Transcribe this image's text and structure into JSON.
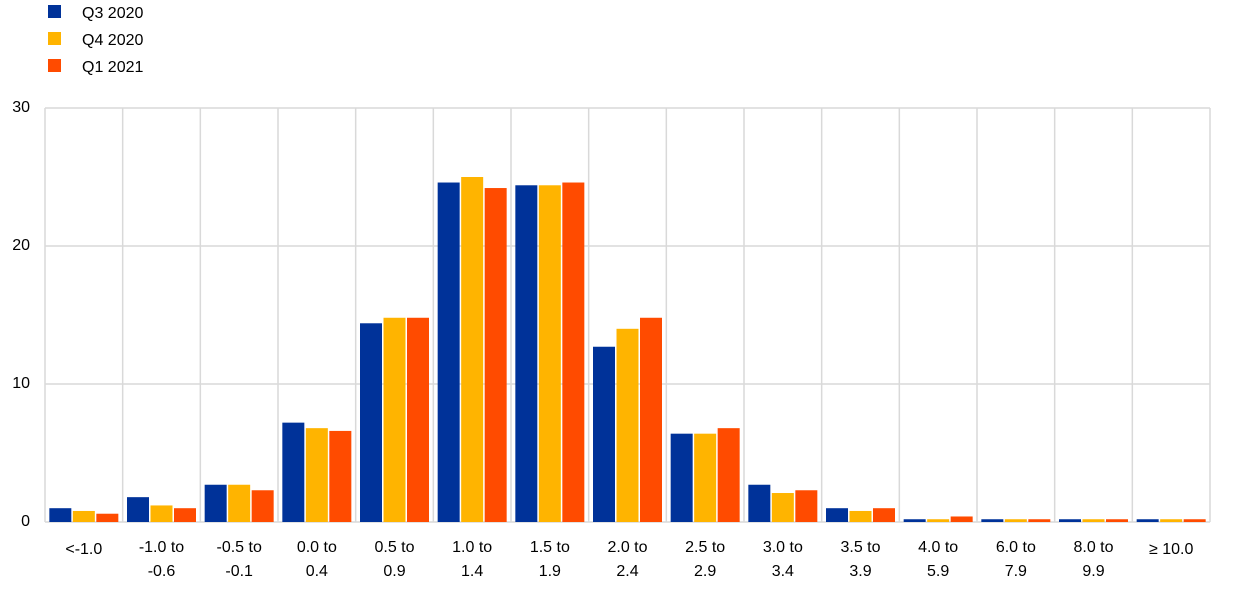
{
  "chart_data": {
    "type": "bar",
    "categories": [
      [
        "<-1.0"
      ],
      [
        "-1.0 to",
        "-0.6"
      ],
      [
        "-0.5 to",
        "-0.1"
      ],
      [
        "0.0 to",
        "0.4"
      ],
      [
        "0.5 to",
        "0.9"
      ],
      [
        "1.0  to",
        "1.4"
      ],
      [
        "1.5  to",
        "1.9"
      ],
      [
        "2.0  to",
        "2.4"
      ],
      [
        "2.5  to",
        "2.9"
      ],
      [
        "3.0  to",
        "3.4"
      ],
      [
        "3.5  to",
        "3.9"
      ],
      [
        "4.0 to",
        "5.9"
      ],
      [
        "6.0 to",
        "7.9"
      ],
      [
        "8.0 to",
        "9.9"
      ],
      [
        "≥ 10.0"
      ]
    ],
    "series": [
      {
        "name": "Q3 2020",
        "color": "#003299",
        "values": [
          1.0,
          1.8,
          2.7,
          7.2,
          14.4,
          24.6,
          24.4,
          12.7,
          6.4,
          2.7,
          1.0,
          0.2,
          0.2,
          0.2,
          0.2
        ]
      },
      {
        "name": "Q4 2020",
        "color": "#ffb400",
        "values": [
          0.8,
          1.2,
          2.7,
          6.8,
          14.8,
          25.0,
          24.4,
          14.0,
          6.4,
          2.1,
          0.8,
          0.2,
          0.2,
          0.2,
          0.2
        ]
      },
      {
        "name": "Q1 2021",
        "color": "#ff4b00",
        "values": [
          0.6,
          1.0,
          2.3,
          6.6,
          14.8,
          24.2,
          24.6,
          14.8,
          6.8,
          2.3,
          1.0,
          0.4,
          0.2,
          0.2,
          0.2
        ]
      }
    ],
    "ylim": [
      0,
      30
    ],
    "yticks": [
      0,
      10,
      20,
      30
    ],
    "grid": true,
    "legend": "top-left"
  }
}
